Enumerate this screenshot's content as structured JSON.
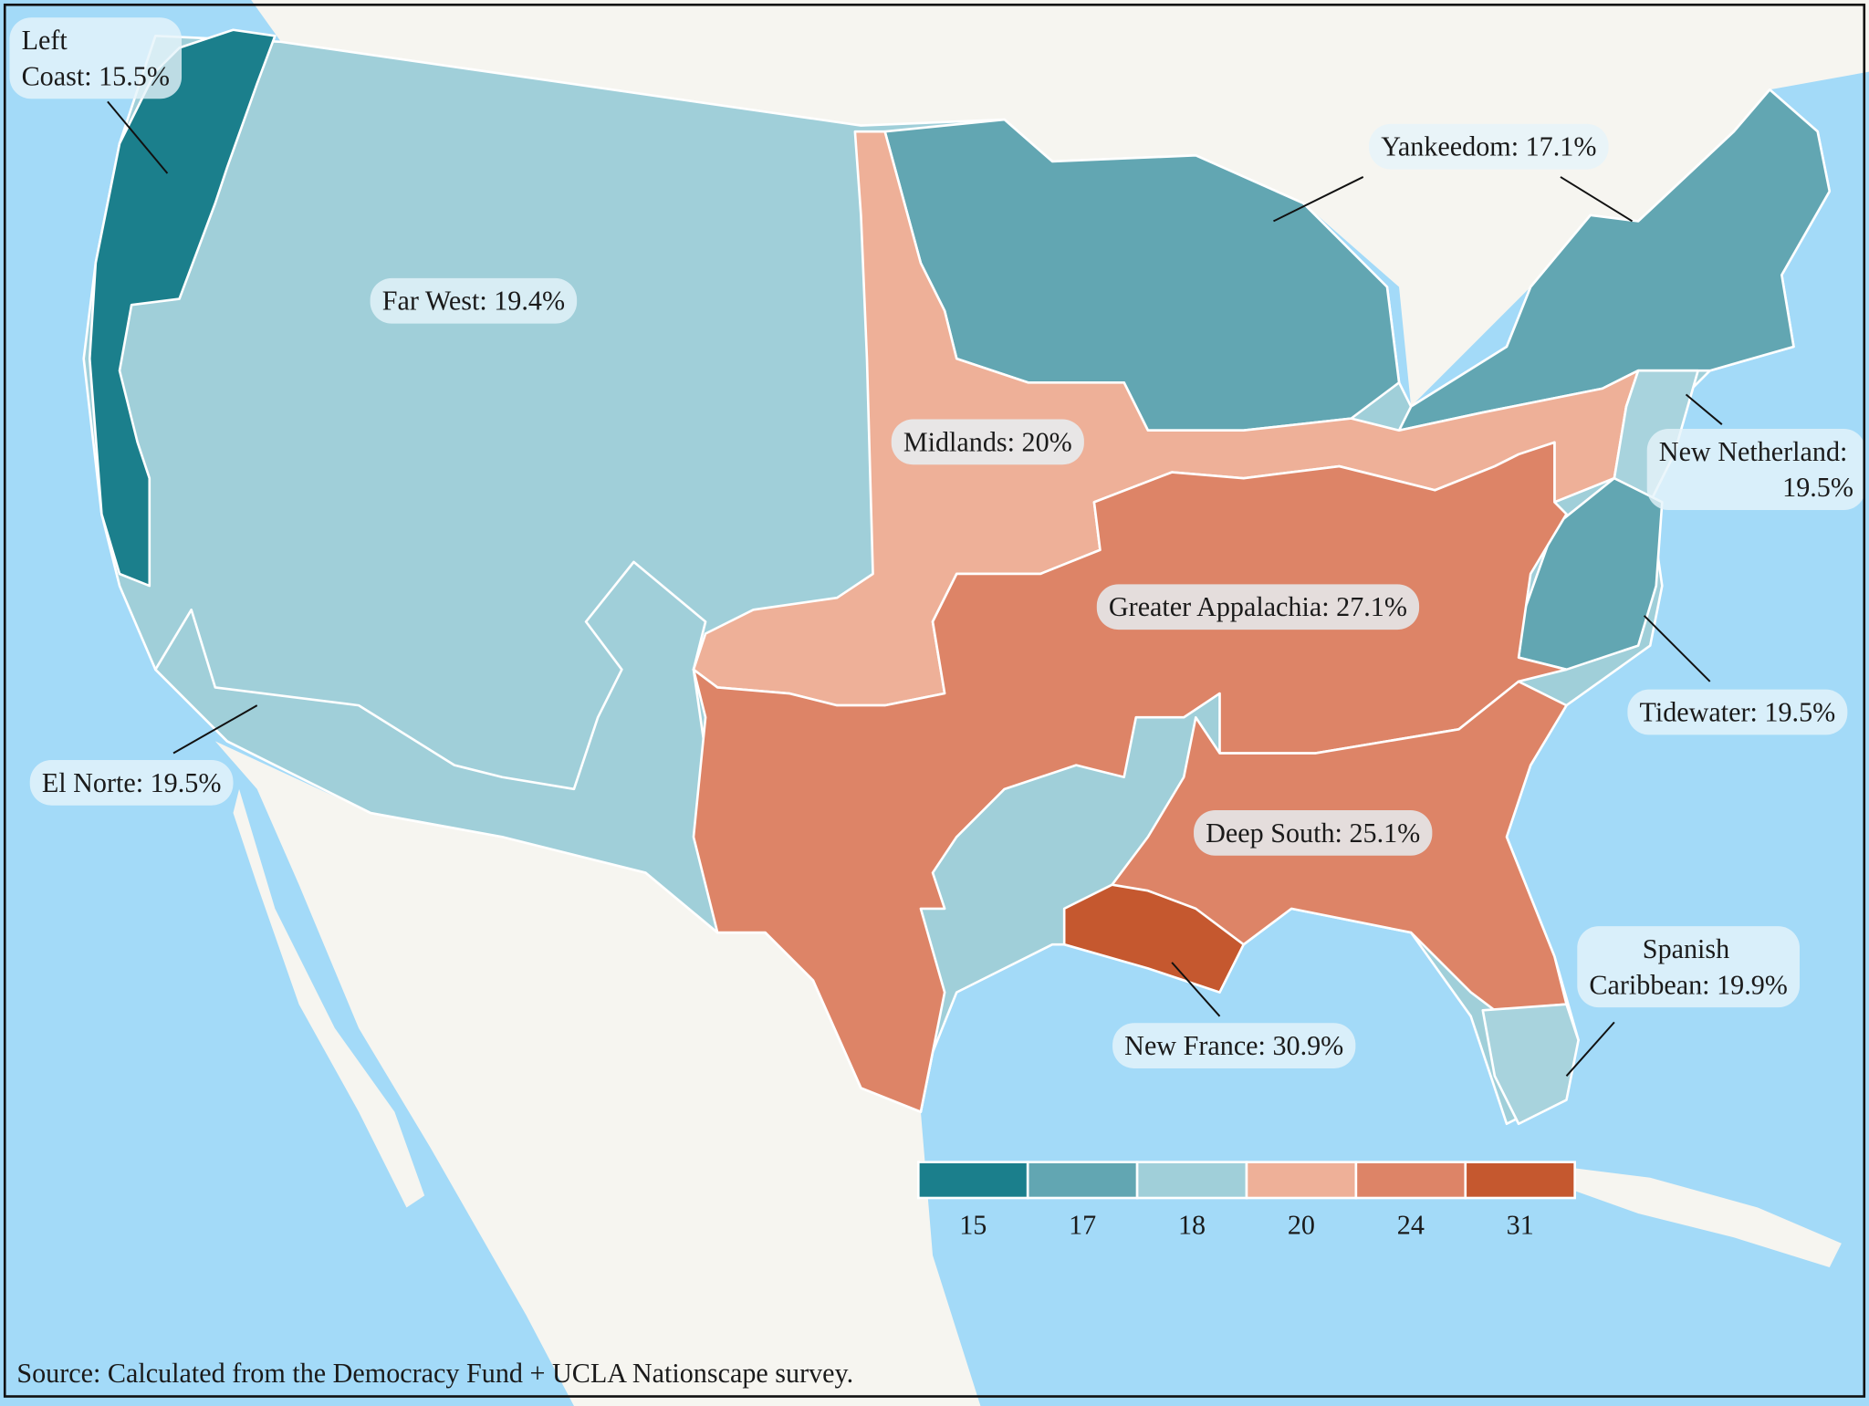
{
  "regions": [
    {
      "label_lines": [
        "Left",
        "Coast: 15.5%"
      ],
      "color": "#1b7f8c"
    },
    {
      "label_lines": [
        "Far West: 19.4%"
      ],
      "color": "#a0cfd9"
    },
    {
      "label_lines": [
        "El Norte: 19.5%"
      ],
      "color": "#a0cfd9"
    },
    {
      "label_lines": [
        "Yankeedom: 17.1%"
      ],
      "color": "#62a6b2"
    },
    {
      "label_lines": [
        "Midlands: 20%"
      ],
      "color": "#eeb098"
    },
    {
      "label_lines": [
        "New Netherland:",
        "19.5%"
      ],
      "color": "#a8d3dd"
    },
    {
      "label_lines": [
        "Tidewater: 19.5%"
      ],
      "color": "#62a6b2"
    },
    {
      "label_lines": [
        "Greater Appalachia: 27.1%"
      ],
      "color": "#dd8467"
    },
    {
      "label_lines": [
        "Deep South: 25.1%"
      ],
      "color": "#dd8467"
    },
    {
      "label_lines": [
        "New France: 30.9%"
      ],
      "color": "#c5582f"
    },
    {
      "label_lines": [
        "Spanish",
        "Caribbean: 19.9%"
      ],
      "color": "#a8d3dd"
    }
  ],
  "legend": {
    "items": [
      {
        "label": 15,
        "color": "#1b7f8c"
      },
      {
        "label": 17,
        "color": "#62a6b2"
      },
      {
        "label": 18,
        "color": "#a0cfd9"
      },
      {
        "label": 20,
        "color": "#eeb098"
      },
      {
        "label": 24,
        "color": "#dd8467"
      },
      {
        "label": 31,
        "color": "#c5582f"
      }
    ]
  },
  "source": "Source: Calculated from the Democracy Fund + UCLA Nationscape survey."
}
